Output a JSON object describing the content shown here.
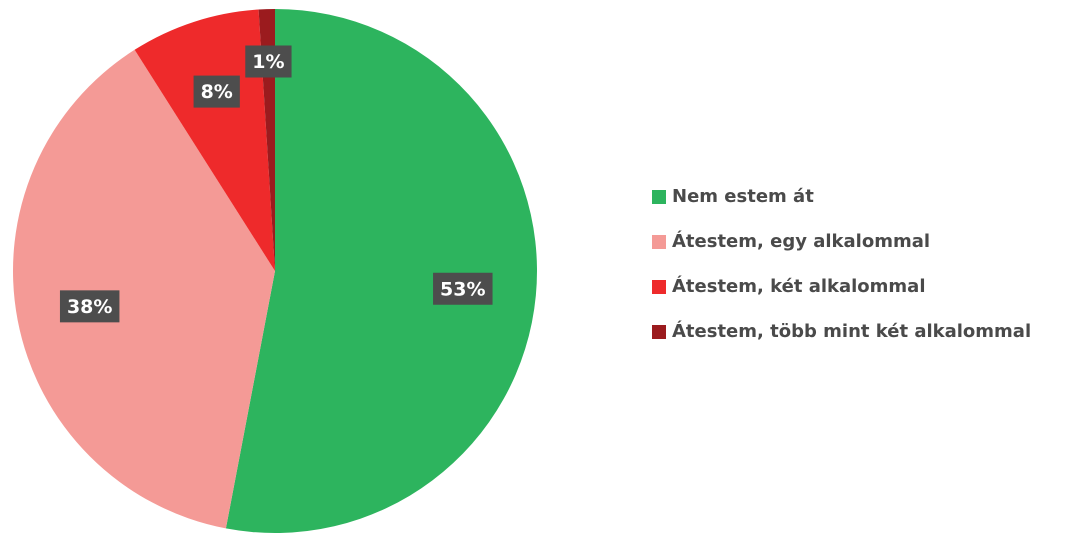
{
  "chart_data": {
    "type": "pie",
    "categories": [
      "Nem estem át",
      "Átestem, egy alkalommal",
      "Átestem, két alkalommal",
      "Átestem, több mint két alkalommal"
    ],
    "values": [
      53,
      38,
      8,
      1
    ],
    "value_labels": [
      "53%",
      "38%",
      "8%",
      "1%"
    ],
    "colors": [
      "#2db45e",
      "#f49a96",
      "#ee2a2b",
      "#9b1b1e"
    ],
    "legend": "right"
  }
}
